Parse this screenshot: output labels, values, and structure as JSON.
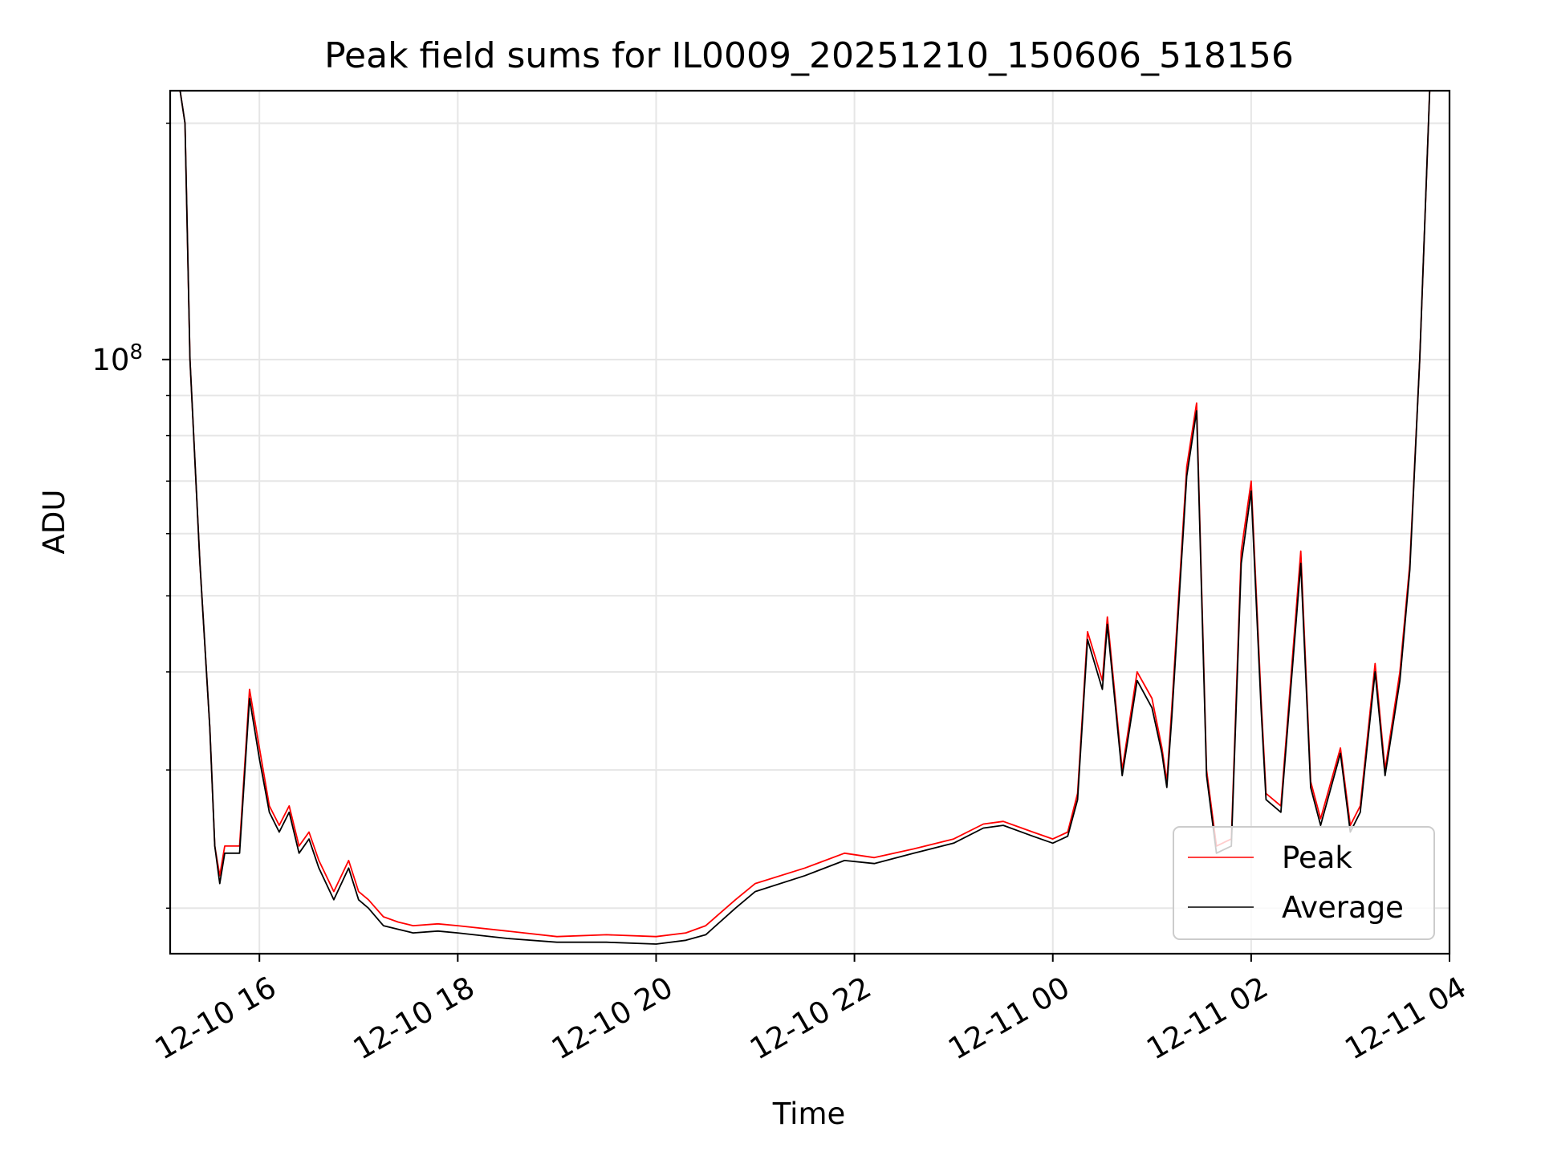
{
  "chart_data": {
    "type": "line",
    "title": "Peak field sums for IL0009_20251210_150606_518156",
    "xlabel": "Time",
    "ylabel": "ADU",
    "yscale": "log",
    "grid": true,
    "legend_position": "lower-right",
    "x_ticks": [
      "12-10 16",
      "12-10 18",
      "12-10 20",
      "12-10 22",
      "12-11 00",
      "12-11 02",
      "12-11 04"
    ],
    "x_tick_hours": [
      16,
      18,
      20,
      22,
      24,
      26,
      28
    ],
    "xlim_hours": [
      15.1,
      28.0
    ],
    "y_tick_label_base": "10",
    "y_tick_label_exp": "8",
    "y_tick_value": 100000000,
    "y_minor_ticks": [
      20000000,
      30000000,
      40000000,
      50000000,
      60000000,
      70000000,
      80000000,
      90000000,
      200000000
    ],
    "ylim": [
      17500000,
      220000000
    ],
    "x": [
      15.1,
      15.2,
      15.25,
      15.3,
      15.4,
      15.5,
      15.55,
      15.6,
      15.65,
      15.8,
      15.9,
      16.0,
      16.1,
      16.2,
      16.3,
      16.4,
      16.5,
      16.6,
      16.75,
      16.9,
      17.0,
      17.1,
      17.25,
      17.4,
      17.55,
      17.8,
      18.0,
      18.5,
      19.0,
      19.5,
      20.0,
      20.3,
      20.5,
      20.8,
      21.0,
      21.5,
      21.9,
      22.2,
      22.6,
      23.0,
      23.3,
      23.5,
      23.8,
      24.0,
      24.15,
      24.25,
      24.35,
      24.5,
      24.55,
      24.7,
      24.85,
      25.0,
      25.1,
      25.15,
      25.2,
      25.35,
      25.45,
      25.55,
      25.65,
      25.8,
      25.9,
      26.0,
      26.1,
      26.15,
      26.3,
      26.5,
      26.6,
      26.7,
      26.9,
      27.0,
      27.1,
      27.25,
      27.35,
      27.5,
      27.6,
      27.7,
      27.8
    ],
    "series": [
      {
        "name": "Peak",
        "color": "#ff0000",
        "values": [
          220000000,
          220000000,
          200000000,
          100000000,
          55000000,
          34000000,
          24000000,
          22000000,
          24000000,
          24000000,
          38000000,
          32000000,
          27000000,
          25500000,
          27000000,
          24000000,
          25000000,
          23000000,
          21000000,
          23000000,
          21000000,
          20500000,
          19500000,
          19200000,
          19000000,
          19100000,
          19000000,
          18700000,
          18400000,
          18500000,
          18400000,
          18600000,
          19000000,
          20500000,
          21500000,
          22500000,
          23500000,
          23200000,
          23800000,
          24500000,
          25600000,
          25800000,
          25000000,
          24500000,
          25000000,
          28000000,
          45000000,
          39000000,
          47000000,
          30000000,
          40000000,
          37000000,
          32000000,
          29000000,
          36000000,
          73000000,
          88000000,
          30000000,
          24000000,
          24500000,
          57000000,
          70000000,
          37000000,
          28000000,
          27000000,
          57000000,
          29000000,
          26000000,
          32000000,
          25500000,
          27000000,
          41000000,
          30000000,
          40000000,
          55000000,
          100000000,
          220000000
        ]
      },
      {
        "name": "Average",
        "color": "#000000",
        "values": [
          220000000,
          220000000,
          200000000,
          100000000,
          55000000,
          34000000,
          24000000,
          21500000,
          23500000,
          23500000,
          37000000,
          31000000,
          26500000,
          25000000,
          26500000,
          23500000,
          24500000,
          22500000,
          20500000,
          22500000,
          20500000,
          20000000,
          19000000,
          18800000,
          18600000,
          18700000,
          18600000,
          18300000,
          18100000,
          18100000,
          18000000,
          18200000,
          18500000,
          20000000,
          21000000,
          22000000,
          23000000,
          22800000,
          23500000,
          24200000,
          25300000,
          25500000,
          24700000,
          24200000,
          24700000,
          27500000,
          44000000,
          38000000,
          46000000,
          29500000,
          39000000,
          36000000,
          31500000,
          28500000,
          35000000,
          71000000,
          86000000,
          29500000,
          23500000,
          24000000,
          55000000,
          68000000,
          36000000,
          27500000,
          26500000,
          55000000,
          28500000,
          25500000,
          31500000,
          25000000,
          26500000,
          40000000,
          29500000,
          39000000,
          54000000,
          100000000,
          220000000
        ]
      }
    ]
  }
}
